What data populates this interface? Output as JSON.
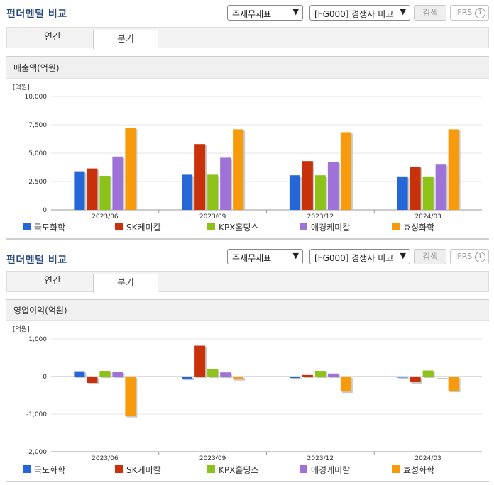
{
  "panels": [
    {
      "title": "펀더멘털 비교",
      "select_item": "주재무제표",
      "select_group": "[FG000] 경쟁사 비교",
      "search_label": "검색",
      "ifrs_label": "IFRS",
      "ifrs_help": "?",
      "tabs": [
        {
          "label": "연간",
          "active": false
        },
        {
          "label": "분기",
          "active": true
        }
      ],
      "chart_title": "매출액(억원)"
    },
    {
      "title": "펀더멘털 비교",
      "select_item": "주재무제표",
      "select_group": "[FG000] 경쟁사 비교",
      "search_label": "검색",
      "ifrs_label": "IFRS",
      "ifrs_help": "?",
      "tabs": [
        {
          "label": "연간",
          "active": false
        },
        {
          "label": "분기",
          "active": true
        }
      ],
      "chart_title": "영업이익(억원)"
    }
  ],
  "chart_data": [
    {
      "type": "bar",
      "title": "매출액(억원)",
      "unit_label": "[억원]",
      "categories": [
        "2023/06",
        "2023/09",
        "2023/12",
        "2024/03"
      ],
      "ylim": [
        0,
        10000
      ],
      "yticks": [
        0,
        2500,
        5000,
        7500,
        10000
      ],
      "ytick_labels": [
        "0",
        "2,500",
        "5,000",
        "7,500",
        "10,000"
      ],
      "grid": true,
      "legend": "bottom",
      "series": [
        {
          "name": "국도화학",
          "color": "#2667d8",
          "values": [
            3400,
            3100,
            3050,
            2950
          ]
        },
        {
          "name": "SK케미칼",
          "color": "#c8310a",
          "values": [
            3650,
            5800,
            4300,
            3800
          ]
        },
        {
          "name": "KPX홀딩스",
          "color": "#8cc21a",
          "values": [
            3000,
            3100,
            3050,
            2950
          ]
        },
        {
          "name": "애경케미칼",
          "color": "#9e72d6",
          "values": [
            4700,
            4600,
            4250,
            4050
          ]
        },
        {
          "name": "효성화학",
          "color": "#f79a0c",
          "values": [
            7250,
            7100,
            6850,
            7100
          ]
        }
      ]
    },
    {
      "type": "bar",
      "title": "영업이익(억원)",
      "unit_label": "[억원]",
      "categories": [
        "2023/06",
        "2023/09",
        "2023/12",
        "2024/03"
      ],
      "ylim": [
        -2000,
        1000
      ],
      "yticks": [
        -2000,
        -1000,
        0,
        1000
      ],
      "ytick_labels": [
        "-2,000",
        "-1,000",
        "0",
        "1,000"
      ],
      "grid": true,
      "legend": "bottom",
      "series": [
        {
          "name": "국도화학",
          "color": "#2667d8",
          "values": [
            140,
            -60,
            -40,
            -30
          ]
        },
        {
          "name": "SK케미칼",
          "color": "#c8310a",
          "values": [
            -170,
            820,
            40,
            -150
          ]
        },
        {
          "name": "KPX홀딩스",
          "color": "#8cc21a",
          "values": [
            150,
            200,
            150,
            160
          ]
        },
        {
          "name": "애경케미칼",
          "color": "#9e72d6",
          "values": [
            130,
            110,
            80,
            -20
          ]
        },
        {
          "name": "효성화학",
          "color": "#f79a0c",
          "values": [
            -1050,
            -70,
            -400,
            -380
          ]
        }
      ]
    }
  ]
}
